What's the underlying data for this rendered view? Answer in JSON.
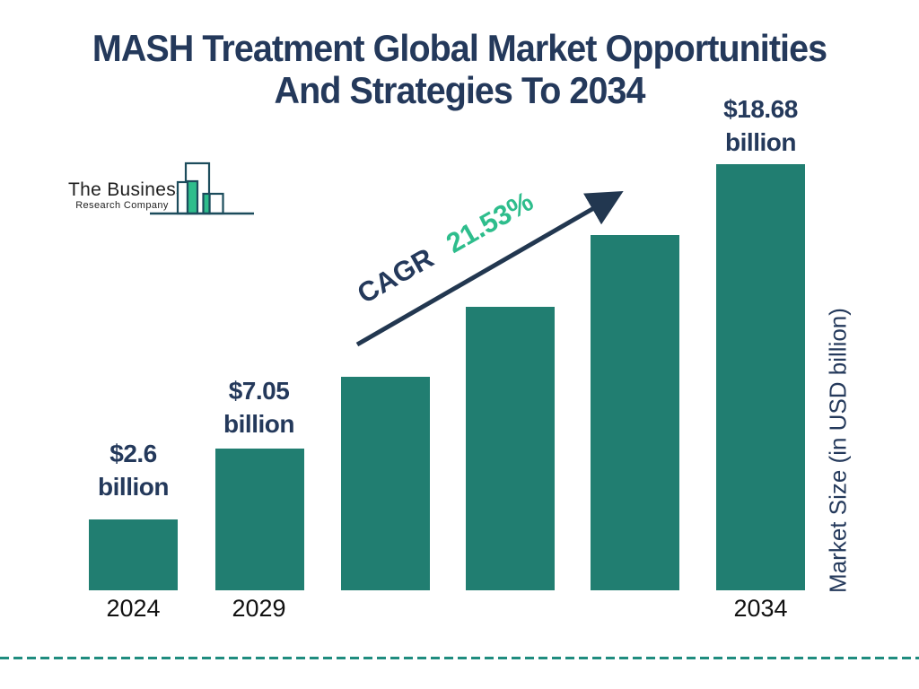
{
  "title": {
    "line1": "MASH Treatment Global Market Opportunities",
    "line2": "And Strategies To 2034"
  },
  "logo": {
    "name_line1": "The Business",
    "name_line2": "Research Company",
    "icon": "bar-chart-logo-icon"
  },
  "cagr": {
    "label": "CAGR",
    "value": "21.53%"
  },
  "y_axis_label": "Market Size (in USD billion)",
  "colors": {
    "navy_text": "#24395B",
    "bar_teal": "#217E71",
    "accent_green": "#2EBD8C",
    "dashed_line_teal": "#1F8C7F",
    "year_label_black": "#111111",
    "logo_outline": "#1C4C5C"
  },
  "chart_data": {
    "type": "bar",
    "title": "MASH Treatment Global Market Opportunities And Strategies To 2034",
    "xlabel": "",
    "ylabel": "Market Size (in USD billion)",
    "legend": "none",
    "grid": false,
    "cagr_label": "CAGR",
    "cagr_value": "21.53%",
    "categories": [
      "2024",
      "2029",
      "",
      "",
      "",
      "2034"
    ],
    "values": [
      2.6,
      7.05,
      null,
      null,
      null,
      18.68
    ],
    "value_unit": "USD billion",
    "bars": [
      {
        "year": "2024",
        "value": 2.6,
        "label_line1": "$2.6",
        "label_line2": "billion",
        "height_frac": 0.166
      },
      {
        "year": "2029",
        "value": 7.05,
        "label_line1": "$7.05",
        "label_line2": "billion",
        "height_frac": 0.333
      },
      {
        "year": "",
        "value": null,
        "label_line1": "",
        "label_line2": "",
        "height_frac": 0.5
      },
      {
        "year": "",
        "value": null,
        "label_line1": "",
        "label_line2": "",
        "height_frac": 0.666
      },
      {
        "year": "",
        "value": null,
        "label_line1": "",
        "label_line2": "",
        "height_frac": 0.833
      },
      {
        "year": "2034",
        "value": 18.68,
        "label_line1": "$18.68",
        "label_line2": "billion",
        "height_frac": 1.0
      }
    ]
  }
}
